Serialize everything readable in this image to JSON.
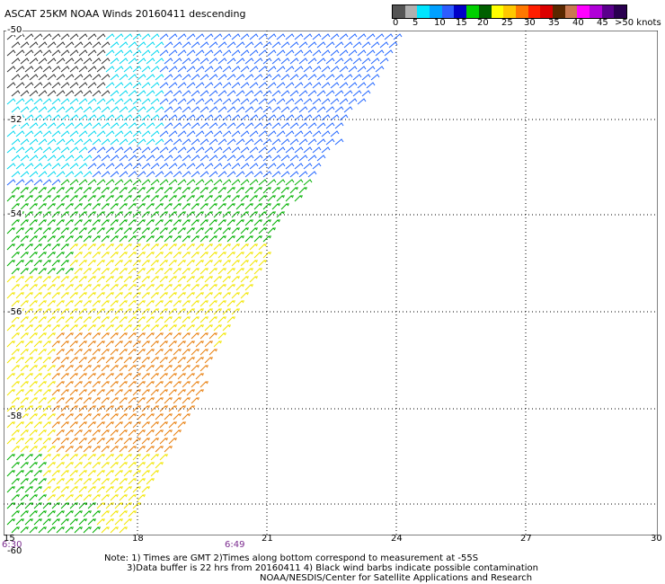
{
  "header": {
    "title": "ASCAT 25KM NOAA Winds 20160411 descending"
  },
  "colorbar": {
    "colors": [
      "#555555",
      "#b0b0b0",
      "#00e5ff",
      "#00a0ff",
      "#2d5cff",
      "#0000c8",
      "#00d000",
      "#006000",
      "#ffff00",
      "#ffc800",
      "#ff7800",
      "#ff1e00",
      "#dc0000",
      "#5a2800",
      "#c87850",
      "#ff00ff",
      "#b000d8",
      "#5a008c",
      "#2a0050"
    ],
    "labels": [
      "0",
      "5",
      "10",
      "15",
      "20",
      "25",
      "30",
      "35",
      "40",
      "45",
      ">50 knots"
    ]
  },
  "map": {
    "lat_labels": [
      "-50",
      "-52",
      "-54",
      "-56",
      "-58",
      "-60"
    ],
    "lon_labels": [
      "15",
      "18",
      "21",
      "24",
      "27",
      "30"
    ],
    "time_labels": [
      "6:30",
      "6:49"
    ]
  },
  "wind_bands": [
    {
      "speed_range_knots": "0-5",
      "color": "#333333"
    },
    {
      "speed_range_knots": "5-10",
      "color": "#00d8f0"
    },
    {
      "speed_range_knots": "10-15",
      "color": "#2266ff"
    },
    {
      "speed_range_knots": "15-20",
      "color": "#00b000"
    },
    {
      "speed_range_knots": "20-25",
      "color": "#f2e600"
    },
    {
      "speed_range_knots": "25-30",
      "color": "#e88010"
    }
  ],
  "notes": {
    "line1": "Note: 1) Times are GMT 2)Times along bottom correspond to measurement at -55S",
    "line2": "3)Data buffer is 22 hrs from 20160411 4) Black wind barbs indicate possible contamination",
    "line3": "NOAA/NESDIS/Center for Satellite Applications and Research"
  }
}
